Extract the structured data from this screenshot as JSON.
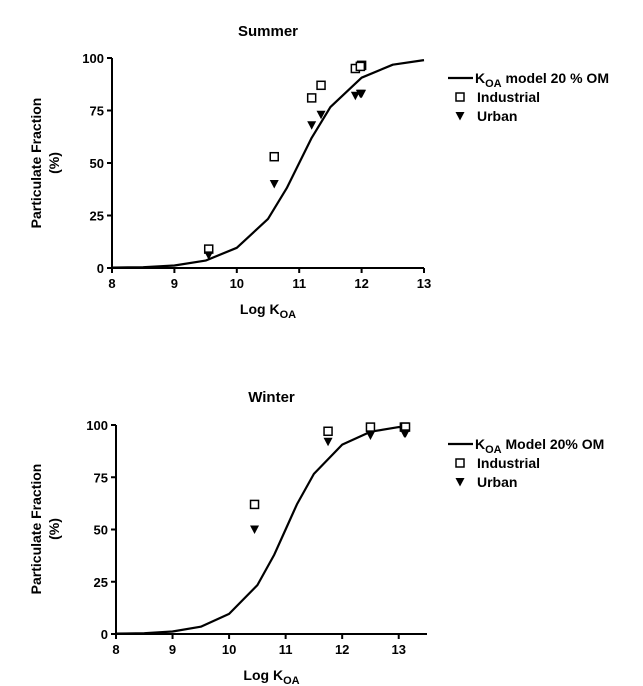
{
  "chart_data": [
    {
      "type": "scatter",
      "title": "Summer",
      "xlabel": {
        "base": "Log K",
        "sub": "OA"
      },
      "ylabel": [
        "Particulate Fraction",
        "(%)"
      ],
      "xlim": [
        8,
        13
      ],
      "ylim": [
        0,
        100
      ],
      "xticks": [
        8,
        9,
        10,
        11,
        12,
        13
      ],
      "yticks": [
        0,
        25,
        50,
        75,
        100
      ],
      "legend_position": "right",
      "series": [
        {
          "name_base": "K",
          "name_sub": "OA",
          "name_rest": " model 20 % OM",
          "kind": "line",
          "points": [
            [
              8.0,
              0.2
            ],
            [
              8.5,
              0.4
            ],
            [
              9.0,
              1.2
            ],
            [
              9.5,
              3.5
            ],
            [
              10.0,
              9.6
            ],
            [
              10.5,
              23.4
            ],
            [
              10.8,
              38.0
            ],
            [
              11.0,
              50.0
            ],
            [
              11.2,
              62.0
            ],
            [
              11.5,
              76.6
            ],
            [
              12.0,
              90.6
            ],
            [
              12.5,
              96.8
            ],
            [
              13.0,
              99.0
            ]
          ]
        },
        {
          "name": "Industrial",
          "kind": "open-square",
          "points": [
            [
              9.55,
              9
            ],
            [
              10.6,
              53
            ],
            [
              11.2,
              81
            ],
            [
              11.35,
              87
            ],
            [
              11.9,
              95
            ],
            [
              12.0,
              96.5
            ],
            [
              11.98,
              96
            ]
          ]
        },
        {
          "name": "Urban",
          "kind": "filled-triangle-down",
          "points": [
            [
              9.55,
              6
            ],
            [
              10.6,
              40
            ],
            [
              11.2,
              68
            ],
            [
              11.35,
              73
            ],
            [
              11.9,
              82
            ],
            [
              12.0,
              83
            ],
            [
              11.98,
              83
            ]
          ]
        }
      ]
    },
    {
      "type": "scatter",
      "title": "Winter",
      "xlabel": {
        "base": "Log K",
        "sub": "OA"
      },
      "ylabel": [
        "Particulate Fraction",
        "(%)"
      ],
      "xlim": [
        8,
        13.5
      ],
      "ylim": [
        0,
        100
      ],
      "xticks": [
        8,
        9,
        10,
        11,
        12,
        13
      ],
      "yticks": [
        0,
        25,
        50,
        75,
        100
      ],
      "legend_position": "right",
      "series": [
        {
          "name_base": "K",
          "name_sub": "OA",
          "name_rest": " Model 20% OM",
          "kind": "line",
          "points": [
            [
              8.0,
              0.2
            ],
            [
              8.5,
              0.4
            ],
            [
              9.0,
              1.2
            ],
            [
              9.5,
              3.5
            ],
            [
              10.0,
              9.6
            ],
            [
              10.5,
              23.4
            ],
            [
              10.8,
              38.0
            ],
            [
              11.0,
              50.0
            ],
            [
              11.2,
              62.0
            ],
            [
              11.5,
              76.6
            ],
            [
              12.0,
              90.6
            ],
            [
              12.5,
              96.8
            ],
            [
              13.0,
              99.0
            ],
            [
              13.2,
              99.3
            ]
          ]
        },
        {
          "name": "Industrial",
          "kind": "open-square",
          "points": [
            [
              10.45,
              62
            ],
            [
              11.75,
              97
            ],
            [
              12.5,
              99
            ],
            [
              13.1,
              99
            ],
            [
              13.12,
              99
            ]
          ]
        },
        {
          "name": "Urban",
          "kind": "filled-triangle-down",
          "points": [
            [
              10.45,
              50
            ],
            [
              11.75,
              92
            ],
            [
              12.5,
              95
            ],
            [
              13.1,
              96
            ],
            [
              13.12,
              96
            ]
          ]
        }
      ]
    }
  ]
}
